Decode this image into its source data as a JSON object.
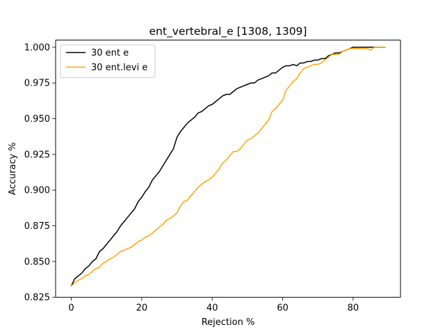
{
  "chart_data": {
    "type": "line",
    "title": "ent_vertebral_e  [1308, 1309]",
    "xlabel": "Rejection %",
    "ylabel": "Accuracy %",
    "xlim": [
      -4.45,
      93.45
    ],
    "ylim": [
      0.825,
      1.005
    ],
    "xticks": [
      0,
      20,
      40,
      60,
      80
    ],
    "xtick_labels": [
      "0",
      "20",
      "40",
      "60",
      "80"
    ],
    "yticks": [
      0.825,
      0.85,
      0.875,
      0.9,
      0.925,
      0.95,
      0.975,
      1.0
    ],
    "ytick_labels": [
      "0.825",
      "0.850",
      "0.875",
      "0.900",
      "0.925",
      "0.950",
      "0.975",
      "1.000"
    ],
    "grid": false,
    "legend_position": "upper-left",
    "series": [
      {
        "name": "30 ent e",
        "color": "#000000",
        "x": [
          0,
          1,
          2,
          3,
          4,
          5,
          6,
          7,
          8,
          9,
          10,
          11,
          12,
          13,
          14,
          15,
          16,
          17,
          18,
          19,
          20,
          21,
          22,
          23,
          24,
          25,
          26,
          27,
          28,
          29,
          30,
          31,
          32,
          33,
          34,
          35,
          36,
          37,
          38,
          39,
          40,
          41,
          42,
          43,
          44,
          45,
          46,
          47,
          48,
          49,
          50,
          51,
          52,
          53,
          54,
          55,
          56,
          57,
          58,
          59,
          60,
          61,
          62,
          63,
          64,
          65,
          66,
          67,
          68,
          69,
          70,
          71,
          72,
          73,
          74,
          75,
          76,
          77,
          78,
          79,
          80,
          81,
          82,
          83,
          84,
          85,
          86,
          87,
          88,
          89
        ],
        "y": [
          0.833,
          0.838,
          0.84,
          0.842,
          0.845,
          0.847,
          0.85,
          0.852,
          0.857,
          0.859,
          0.862,
          0.865,
          0.868,
          0.871,
          0.875,
          0.878,
          0.881,
          0.884,
          0.887,
          0.892,
          0.895,
          0.899,
          0.902,
          0.907,
          0.91,
          0.913,
          0.917,
          0.921,
          0.925,
          0.929,
          0.937,
          0.941,
          0.944,
          0.947,
          0.949,
          0.951,
          0.954,
          0.955,
          0.957,
          0.959,
          0.96,
          0.962,
          0.964,
          0.966,
          0.967,
          0.967,
          0.969,
          0.971,
          0.972,
          0.973,
          0.974,
          0.975,
          0.975,
          0.977,
          0.978,
          0.979,
          0.98,
          0.982,
          0.982,
          0.984,
          0.986,
          0.987,
          0.987,
          0.988,
          0.987,
          0.989,
          0.989,
          0.99,
          0.99,
          0.991,
          0.991,
          0.992,
          0.992,
          0.994,
          0.995,
          0.996,
          0.996,
          0.997,
          0.998,
          0.999,
          1.0,
          1.0,
          1.0,
          1.0,
          1.0,
          1.0,
          1.0,
          1.0,
          1.0,
          1.0
        ]
      },
      {
        "name": "30 ent.levi e",
        "color": "#ffa500",
        "x": [
          0,
          1,
          2,
          3,
          4,
          5,
          6,
          7,
          8,
          9,
          10,
          11,
          12,
          13,
          14,
          15,
          16,
          17,
          18,
          19,
          20,
          21,
          22,
          23,
          24,
          25,
          26,
          27,
          28,
          29,
          30,
          31,
          32,
          33,
          34,
          35,
          36,
          37,
          38,
          39,
          40,
          41,
          42,
          43,
          44,
          45,
          46,
          47,
          48,
          49,
          50,
          51,
          52,
          53,
          54,
          55,
          56,
          57,
          58,
          59,
          60,
          61,
          62,
          63,
          64,
          65,
          66,
          67,
          68,
          69,
          70,
          71,
          72,
          73,
          74,
          75,
          76,
          77,
          78,
          79,
          80,
          81,
          82,
          83,
          84,
          85,
          86,
          87,
          88,
          89
        ],
        "y": [
          0.833,
          0.835,
          0.837,
          0.838,
          0.84,
          0.841,
          0.843,
          0.845,
          0.846,
          0.849,
          0.85,
          0.852,
          0.853,
          0.855,
          0.857,
          0.858,
          0.859,
          0.86,
          0.862,
          0.864,
          0.865,
          0.867,
          0.868,
          0.87,
          0.872,
          0.874,
          0.876,
          0.879,
          0.88,
          0.882,
          0.884,
          0.889,
          0.892,
          0.893,
          0.896,
          0.899,
          0.902,
          0.904,
          0.906,
          0.907,
          0.909,
          0.912,
          0.915,
          0.919,
          0.921,
          0.924,
          0.927,
          0.927,
          0.929,
          0.932,
          0.935,
          0.936,
          0.938,
          0.94,
          0.943,
          0.946,
          0.949,
          0.955,
          0.957,
          0.96,
          0.963,
          0.97,
          0.973,
          0.976,
          0.978,
          0.982,
          0.985,
          0.986,
          0.987,
          0.988,
          0.988,
          0.989,
          0.991,
          0.993,
          0.995,
          0.995,
          0.995,
          0.997,
          0.998,
          0.999,
          0.999,
          0.999,
          0.999,
          0.999,
          0.999,
          0.998,
          1.0,
          1.0,
          1.0,
          1.0
        ]
      }
    ]
  }
}
